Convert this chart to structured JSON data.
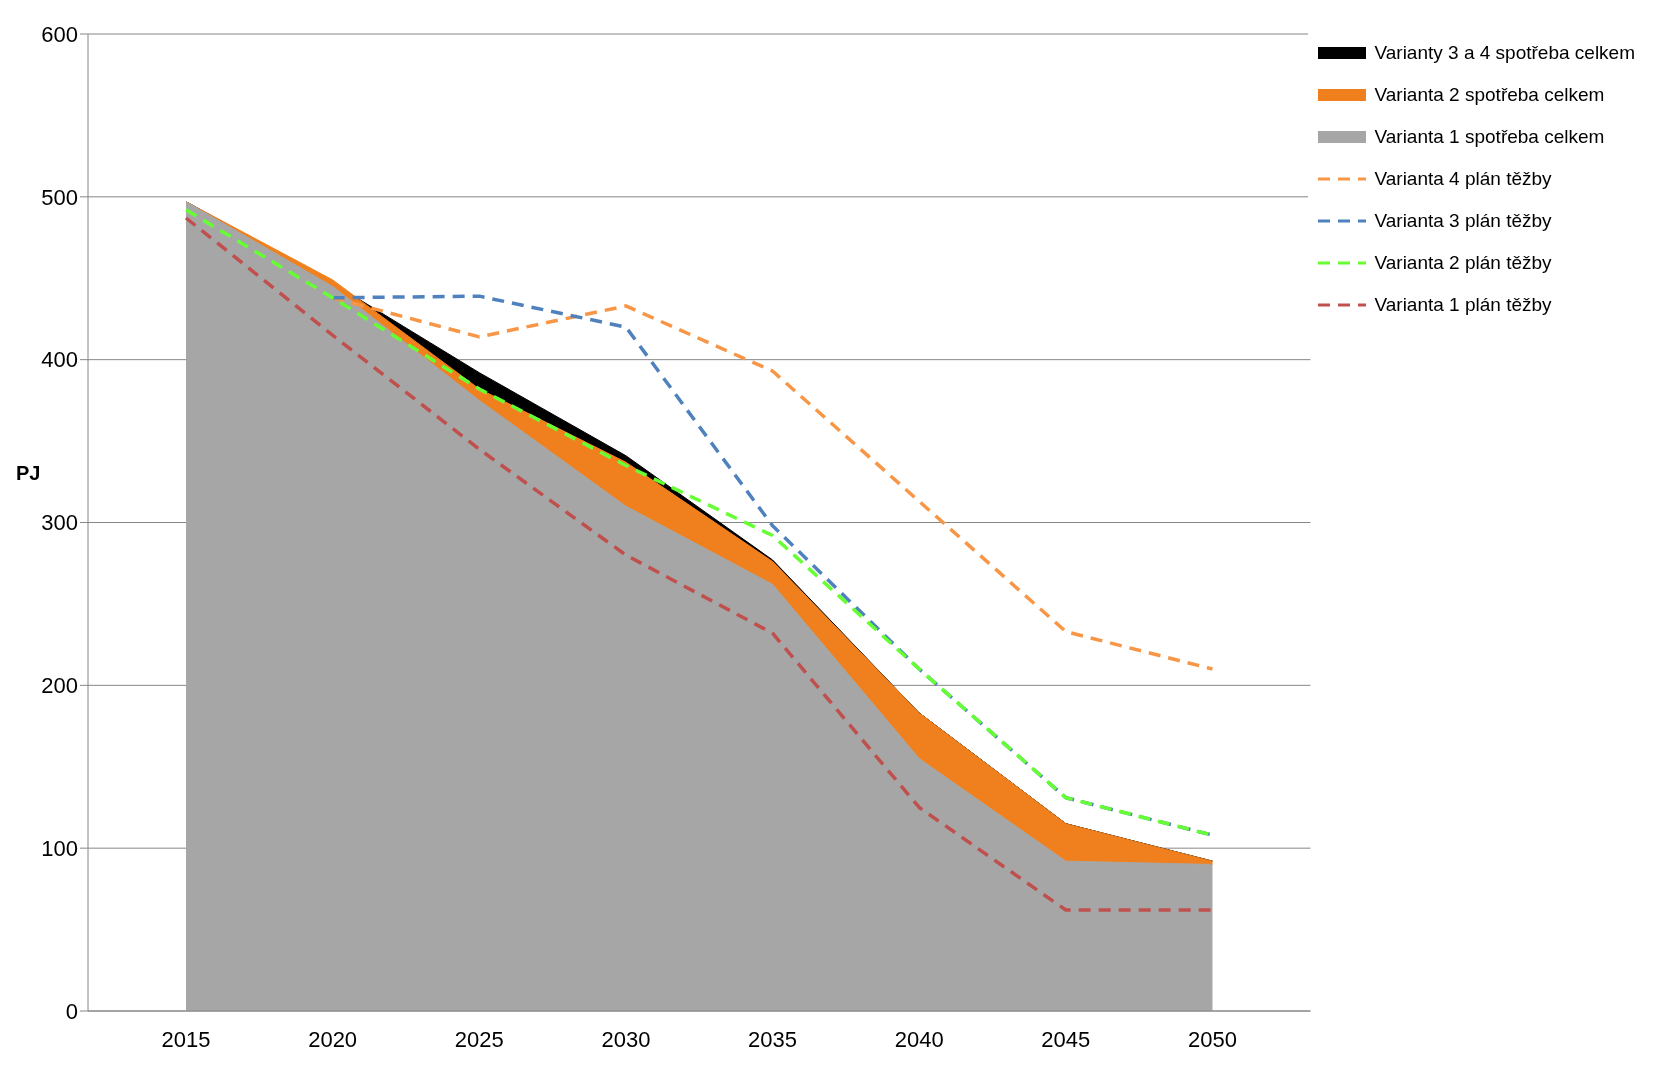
{
  "chart_data": {
    "type": "area",
    "ylabel": "PJ",
    "categories": [
      "2015",
      "2020",
      "2025",
      "2030",
      "2035",
      "2040",
      "2045",
      "2050"
    ],
    "ylim": [
      0,
      600
    ],
    "yticks": [
      0,
      100,
      200,
      300,
      400,
      500,
      600
    ],
    "grid": "y",
    "legend": "top right",
    "series": [
      {
        "name": "Varianty  3 a 4 spotřeba celkem",
        "type": "area",
        "color": "#000000",
        "values": [
          497,
          447,
          392,
          341,
          277,
          183,
          115,
          92
        ]
      },
      {
        "name": "Varianta 2 spotřeba celkem",
        "type": "area",
        "color": "#f0801e",
        "values": [
          497,
          449,
          382,
          337,
          276,
          183,
          115,
          92
        ]
      },
      {
        "name": "Varianta 1 spotřeba celkem",
        "type": "area",
        "color": "#a6a6a6",
        "values": [
          497,
          445,
          375,
          310,
          262,
          155,
          92,
          90
        ]
      },
      {
        "name": "Varianta 4 plán těžby",
        "type": "line",
        "line_style": "dashed",
        "color": "#f79646",
        "values": [
          null,
          438,
          414,
          433,
          393,
          313,
          233,
          210
        ]
      },
      {
        "name": "Varianta 3 plán těžby",
        "type": "line",
        "line_style": "dashed",
        "color": "#4f81bd",
        "values": [
          null,
          438,
          439,
          420,
          298,
          210,
          131,
          108
        ]
      },
      {
        "name": "Varianta 2 plán těžby",
        "type": "line",
        "line_style": "dashed",
        "color": "#66ff33",
        "values": [
          492,
          438,
          382,
          335,
          292,
          210,
          131,
          108
        ]
      },
      {
        "name": "Varianta 1 plán těžby",
        "type": "line",
        "line_style": "dashed",
        "color": "#c0504d",
        "values": [
          487,
          415,
          345,
          280,
          232,
          125,
          62,
          62
        ]
      }
    ]
  }
}
